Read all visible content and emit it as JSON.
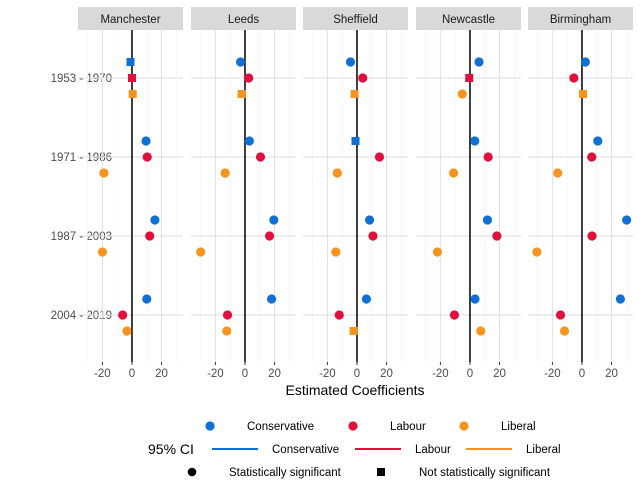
{
  "chart_data": {
    "type": "scatter",
    "facets": [
      "Manchester",
      "Leeds",
      "Sheffield",
      "Newcastle",
      "Birmingham"
    ],
    "categories": [
      "1953 - 1970",
      "1971 - 1986",
      "1987 - 2003",
      "2004 - 2019"
    ],
    "xlabel": "Estimated Coefficients",
    "ylabel": "",
    "xlim": [
      -36.5,
      34.5
    ],
    "xticks": [
      -20,
      0,
      20
    ],
    "grid": true,
    "legend_position": "bottom",
    "colors": {
      "Conservative": "#1170D6",
      "Labour": "#E0103A",
      "Liberal": "#F7941D"
    },
    "series": [
      {
        "name": "Conservative",
        "values": {
          "Manchester": [
            -1,
            9.5,
            15.5,
            10
          ],
          "Leeds": [
            -3,
            3,
            19.5,
            18
          ],
          "Sheffield": [
            -4.4,
            -1,
            8.5,
            6.4
          ],
          "Newcastle": [
            6.1,
            3.2,
            11.8,
            3.4
          ],
          "Birmingham": [
            2.3,
            10.7,
            30.2,
            26
          ]
        },
        "significant": {
          "Manchester": [
            false,
            true,
            true,
            true
          ],
          "Leeds": [
            true,
            true,
            true,
            true
          ],
          "Sheffield": [
            true,
            false,
            true,
            true
          ],
          "Newcastle": [
            true,
            true,
            true,
            true
          ],
          "Birmingham": [
            true,
            true,
            true,
            true
          ]
        }
      },
      {
        "name": "Labour",
        "values": {
          "Manchester": [
            0,
            10.3,
            12,
            -6.3
          ],
          "Leeds": [
            2.5,
            10.5,
            16.6,
            -11.8
          ],
          "Sheffield": [
            3.9,
            15.2,
            10.8,
            -12
          ],
          "Newcastle": [
            -0.5,
            12.3,
            18.2,
            -10.5
          ],
          "Birmingham": [
            -5.5,
            6.6,
            6.8,
            -14.5
          ]
        },
        "significant": {
          "Manchester": [
            false,
            true,
            true,
            true
          ],
          "Leeds": [
            true,
            true,
            true,
            true
          ],
          "Sheffield": [
            true,
            true,
            true,
            true
          ],
          "Newcastle": [
            false,
            true,
            true,
            true
          ],
          "Birmingham": [
            true,
            true,
            true,
            true
          ]
        }
      },
      {
        "name": "Liberal",
        "values": {
          "Manchester": [
            0.5,
            -19,
            -20,
            -3.4
          ],
          "Leeds": [
            -2.3,
            -13.4,
            -30,
            -12.3
          ],
          "Sheffield": [
            -1.6,
            -13.3,
            -14.3,
            -2.3
          ],
          "Newcastle": [
            -5.2,
            -11.1,
            -22,
            7.3
          ],
          "Birmingham": [
            0.7,
            -16.4,
            -30.5,
            -11.8
          ]
        },
        "significant": {
          "Manchester": [
            false,
            true,
            true,
            true
          ],
          "Leeds": [
            false,
            true,
            true,
            true
          ],
          "Sheffield": [
            false,
            true,
            true,
            false
          ],
          "Newcastle": [
            true,
            true,
            true,
            true
          ],
          "Birmingham": [
            false,
            true,
            true,
            true
          ]
        }
      }
    ],
    "legend": {
      "colour_entries": [
        "Conservative",
        "Labour",
        "Liberal"
      ],
      "ci_title": "95% CI",
      "ci_entries": [
        "Conservative",
        "Labour",
        "Liberal"
      ],
      "shape_entries": [
        "Statistically significant",
        "Not statistically significant"
      ]
    }
  }
}
